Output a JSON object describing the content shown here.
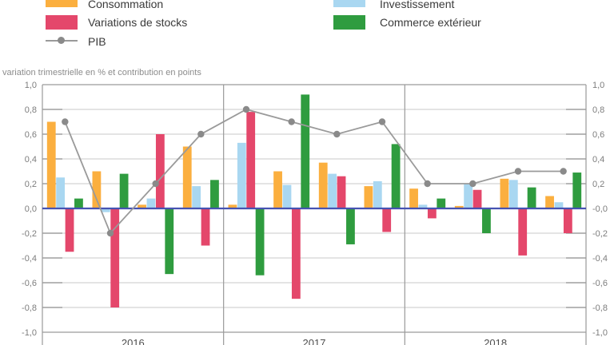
{
  "colors": {
    "zero_line": "#4653B2",
    "gridline": "#C9C9C9",
    "axis_border": "#9A9A9A",
    "axis_tick": "#8C8C8C",
    "tick_label": "#7D7D7D",
    "year_label": "#4D4D4D",
    "legend_text": "#3A3A3A"
  },
  "chart_data": {
    "type": "bar+line",
    "subtitle": "variation trimestrielle en % et contribution en points",
    "categories_years": [
      "2016",
      "2017",
      "2018"
    ],
    "quarters_per_year": 4,
    "ylim": [
      -1.0,
      1.0
    ],
    "ytick_step": 0.2,
    "decimal_separator": ",",
    "zero_label_right": "-0,0",
    "grid": true,
    "legend_position": "top",
    "series": [
      {
        "name": "Consommation",
        "type": "bar",
        "color": "#FBAF3F",
        "values": [
          0.7,
          0.3,
          0.03,
          0.5,
          0.03,
          0.3,
          0.37,
          0.18,
          0.16,
          0.02,
          0.24,
          0.1
        ]
      },
      {
        "name": "Investissement",
        "type": "bar",
        "color": "#A9D7F1",
        "values": [
          0.25,
          -0.03,
          0.08,
          0.18,
          0.53,
          0.19,
          0.28,
          0.22,
          0.03,
          0.2,
          0.23,
          0.05
        ]
      },
      {
        "name": "Variations de stocks",
        "type": "bar",
        "color": "#E4476B",
        "values": [
          -0.35,
          -0.8,
          0.6,
          -0.3,
          0.78,
          -0.73,
          0.26,
          -0.19,
          -0.08,
          0.15,
          -0.38,
          -0.2
        ]
      },
      {
        "name": "Commerce extérieur",
        "type": "bar",
        "color": "#2F9C3F",
        "values": [
          0.08,
          0.28,
          -0.53,
          0.23,
          -0.54,
          0.92,
          -0.29,
          0.52,
          0.08,
          -0.2,
          0.17,
          0.29
        ]
      },
      {
        "name": "PIB",
        "type": "line",
        "color": "#9A9A9A",
        "marker_color": "#8A8A8A",
        "values": [
          0.7,
          -0.2,
          0.2,
          0.6,
          0.8,
          0.7,
          0.6,
          0.7,
          0.2,
          0.2,
          0.3,
          0.3
        ]
      }
    ]
  }
}
